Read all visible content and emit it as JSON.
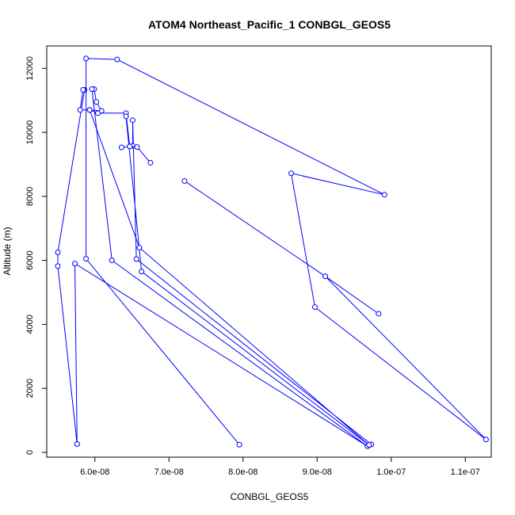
{
  "chart_data": {
    "type": "line",
    "title": "ATOM4 Northeast_Pacific_1 CONBGL_GEOS5",
    "xlabel": "CONBGL_GEOS5",
    "ylabel": "Altitude (m)",
    "xlim": [
      5.35e-08,
      1.135e-07
    ],
    "ylim": [
      -150,
      12700
    ],
    "x_ticks": [
      6e-08,
      7e-08,
      8e-08,
      9e-08,
      1e-07,
      1.1e-07
    ],
    "x_tick_labels": [
      "6.0e-08",
      "7.0e-08",
      "8.0e-08",
      "9.0e-08",
      "1.0e-07",
      "1.1e-07"
    ],
    "y_ticks": [
      0,
      2000,
      4000,
      6000,
      8000,
      10000,
      12000
    ],
    "y_tick_labels": [
      "0",
      "2000",
      "4000",
      "6000",
      "8000",
      "10000",
      "12000"
    ],
    "color": "#0000ff",
    "grid": false,
    "legend": "none",
    "series": [
      {
        "points": [
          [
            5.76e-08,
            260
          ],
          [
            5.5e-08,
            5820
          ],
          [
            5.5e-08,
            6250
          ],
          [
            5.86e-08,
            11330
          ],
          [
            5.84e-08,
            11330
          ],
          [
            5.8e-08,
            10700
          ],
          [
            5.93e-08,
            10700
          ],
          [
            6.09e-08,
            10670
          ],
          [
            6.02e-08,
            10950
          ],
          [
            5.99e-08,
            11350
          ],
          [
            5.96e-08,
            11350
          ],
          [
            6.23e-08,
            6000
          ],
          [
            9.68e-08,
            190
          ],
          [
            5.73e-08,
            5900
          ],
          [
            5.76e-08,
            260
          ]
        ]
      },
      {
        "points": [
          [
            7.95e-08,
            240
          ],
          [
            5.88e-08,
            6050
          ],
          [
            5.88e-08,
            12310
          ],
          [
            6.3e-08,
            12280
          ],
          [
            9.91e-08,
            8050
          ],
          [
            8.65e-08,
            8720
          ],
          [
            8.97e-08,
            4540
          ],
          [
            1.128e-07,
            400
          ],
          [
            9.11e-08,
            5500
          ],
          [
            7.21e-08,
            8480
          ],
          [
            9.11e-08,
            5500
          ],
          [
            9.83e-08,
            4330
          ]
        ]
      },
      {
        "points": [
          [
            9.73e-08,
            250
          ],
          [
            6.56e-08,
            6040
          ],
          [
            6.51e-08,
            10380
          ],
          [
            6.51e-08,
            9580
          ],
          [
            6.47e-08,
            9560
          ],
          [
            6.42e-08,
            10600
          ],
          [
            6.04e-08,
            10600
          ],
          [
            5.93e-08,
            10700
          ],
          [
            6.6e-08,
            6400
          ],
          [
            9.7e-08,
            230
          ],
          [
            6.63e-08,
            5650
          ],
          [
            6.42e-08,
            10500
          ]
        ]
      },
      {
        "points": [
          [
            6.36e-08,
            9530
          ],
          [
            6.47e-08,
            9560
          ],
          [
            6.57e-08,
            9540
          ],
          [
            6.75e-08,
            9050
          ]
        ]
      }
    ]
  }
}
